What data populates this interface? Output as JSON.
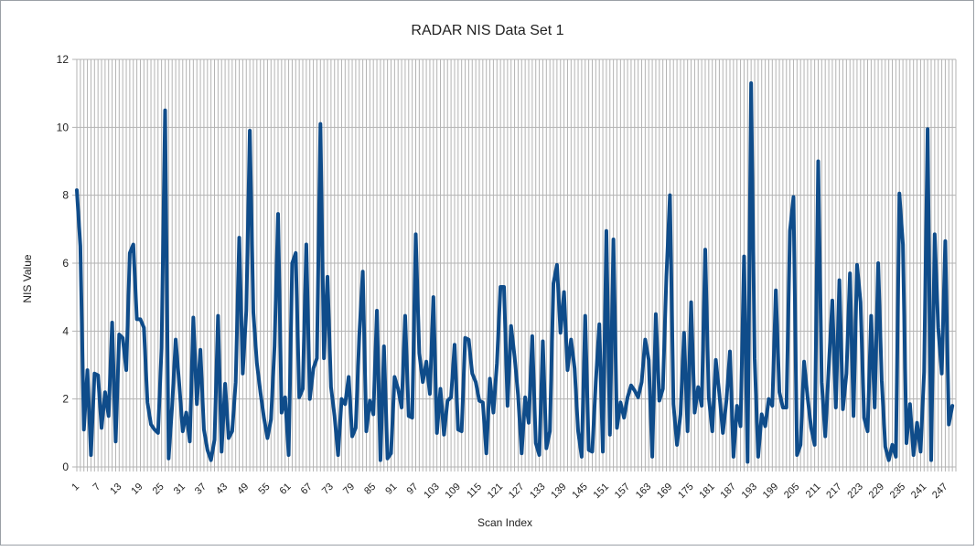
{
  "chart_data": {
    "type": "line",
    "title": "RADAR NIS Data Set 1",
    "xlabel": "Scan Index",
    "ylabel": "NIS Value",
    "ylim": [
      0,
      12
    ],
    "yticks": [
      0,
      2,
      4,
      6,
      8,
      10,
      12
    ],
    "xlim": [
      1,
      250
    ],
    "xtick_start": 1,
    "xtick_step": 6,
    "grid": true,
    "legend": "none",
    "series": [
      {
        "color": "#0f4c8a",
        "x_start": 1,
        "values": [
          8.15,
          6.5,
          1.1,
          2.85,
          0.35,
          2.75,
          2.7,
          1.15,
          2.2,
          1.5,
          4.25,
          0.75,
          3.9,
          3.8,
          2.85,
          6.3,
          6.55,
          4.35,
          4.35,
          4.1,
          1.9,
          1.25,
          1.1,
          1.0,
          3.5,
          10.5,
          0.25,
          1.8,
          3.75,
          2.45,
          1.05,
          1.6,
          0.75,
          4.4,
          1.85,
          3.45,
          1.1,
          0.5,
          0.2,
          0.8,
          4.45,
          0.45,
          2.45,
          0.85,
          1.05,
          2.5,
          6.75,
          2.75,
          4.6,
          9.9,
          4.55,
          3.05,
          2.2,
          1.45,
          0.85,
          1.4,
          3.55,
          7.45,
          1.6,
          2.05,
          0.35,
          6.0,
          6.3,
          2.05,
          2.3,
          6.55,
          2.0,
          2.9,
          3.2,
          10.1,
          3.2,
          5.6,
          2.35,
          1.5,
          0.35,
          2.0,
          1.85,
          2.65,
          0.9,
          1.15,
          3.85,
          5.75,
          1.05,
          1.95,
          1.55,
          4.6,
          0.2,
          3.55,
          0.25,
          0.4,
          2.65,
          2.3,
          1.75,
          4.45,
          1.5,
          1.45,
          6.85,
          3.35,
          2.5,
          3.1,
          2.15,
          5.0,
          1.0,
          2.3,
          0.95,
          1.95,
          2.05,
          3.6,
          1.1,
          1.05,
          3.8,
          3.75,
          2.75,
          2.5,
          1.95,
          1.9,
          0.4,
          2.6,
          1.6,
          3.05,
          5.3,
          5.3,
          1.8,
          4.15,
          3.25,
          2.1,
          0.4,
          2.05,
          1.3,
          3.85,
          0.7,
          0.35,
          3.7,
          0.55,
          1.05,
          5.4,
          5.95,
          3.95,
          5.15,
          2.85,
          3.75,
          2.9,
          1.05,
          0.3,
          4.45,
          0.5,
          0.45,
          2.5,
          4.2,
          0.45,
          6.95,
          0.95,
          6.7,
          1.15,
          1.9,
          1.45,
          2.05,
          2.4,
          2.25,
          2.05,
          2.5,
          3.75,
          3.15,
          0.3,
          4.5,
          1.95,
          2.3,
          5.6,
          8.0,
          1.85,
          0.65,
          1.55,
          3.95,
          1.05,
          4.85,
          1.6,
          2.35,
          1.8,
          6.4,
          2.05,
          1.05,
          3.15,
          2.15,
          1.0,
          1.95,
          3.4,
          0.3,
          1.8,
          1.2,
          6.2,
          0.15,
          11.3,
          3.2,
          0.3,
          1.55,
          1.2,
          2.0,
          1.8,
          5.2,
          2.2,
          1.75,
          1.75,
          6.95,
          7.95,
          0.35,
          0.65,
          3.1,
          2.05,
          1.15,
          0.65,
          9.0,
          2.5,
          0.9,
          2.95,
          4.9,
          1.75,
          5.5,
          1.7,
          2.75,
          5.7,
          1.5,
          5.95,
          4.85,
          1.45,
          1.05,
          4.45,
          1.75,
          6.0,
          2.55,
          0.6,
          0.2,
          0.65,
          0.3,
          8.05,
          6.55,
          0.7,
          1.85,
          0.35,
          1.3,
          0.45,
          2.8,
          9.95,
          0.2,
          6.85,
          4.1,
          2.75,
          6.65,
          1.25,
          1.8
        ]
      }
    ]
  }
}
